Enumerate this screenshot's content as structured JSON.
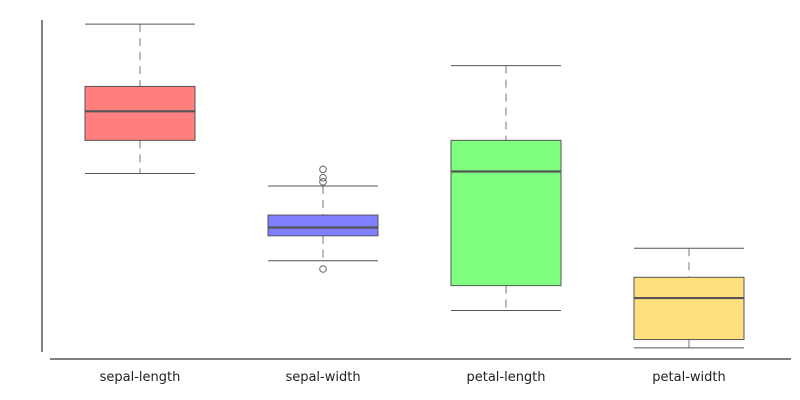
{
  "chart_data": {
    "type": "box",
    "categories": [
      "sepal-length",
      "sepal-width",
      "petal-length",
      "petal-width"
    ],
    "colors": [
      "#ff7f7f",
      "#7f7fff",
      "#7fff7f",
      "#ffe07f"
    ],
    "ylim": [
      0,
      8
    ],
    "grid": false,
    "legend": "none",
    "boxes": [
      {
        "name": "sepal-length",
        "whisker_low": 4.3,
        "q1": 5.1,
        "median": 5.8,
        "q3": 6.4,
        "whisker_high": 7.9,
        "outliers": []
      },
      {
        "name": "sepal-width",
        "whisker_low": 2.2,
        "q1": 2.8,
        "median": 3.0,
        "q3": 3.3,
        "whisker_high": 4.0,
        "outliers": [
          4.4,
          4.1,
          4.2,
          2.0
        ]
      },
      {
        "name": "petal-length",
        "whisker_low": 1.0,
        "q1": 1.6,
        "median": 4.35,
        "q3": 5.1,
        "whisker_high": 6.9,
        "outliers": []
      },
      {
        "name": "petal-width",
        "whisker_low": 0.1,
        "q1": 0.3,
        "median": 1.3,
        "q3": 1.8,
        "whisker_high": 2.5,
        "outliers": []
      }
    ]
  }
}
